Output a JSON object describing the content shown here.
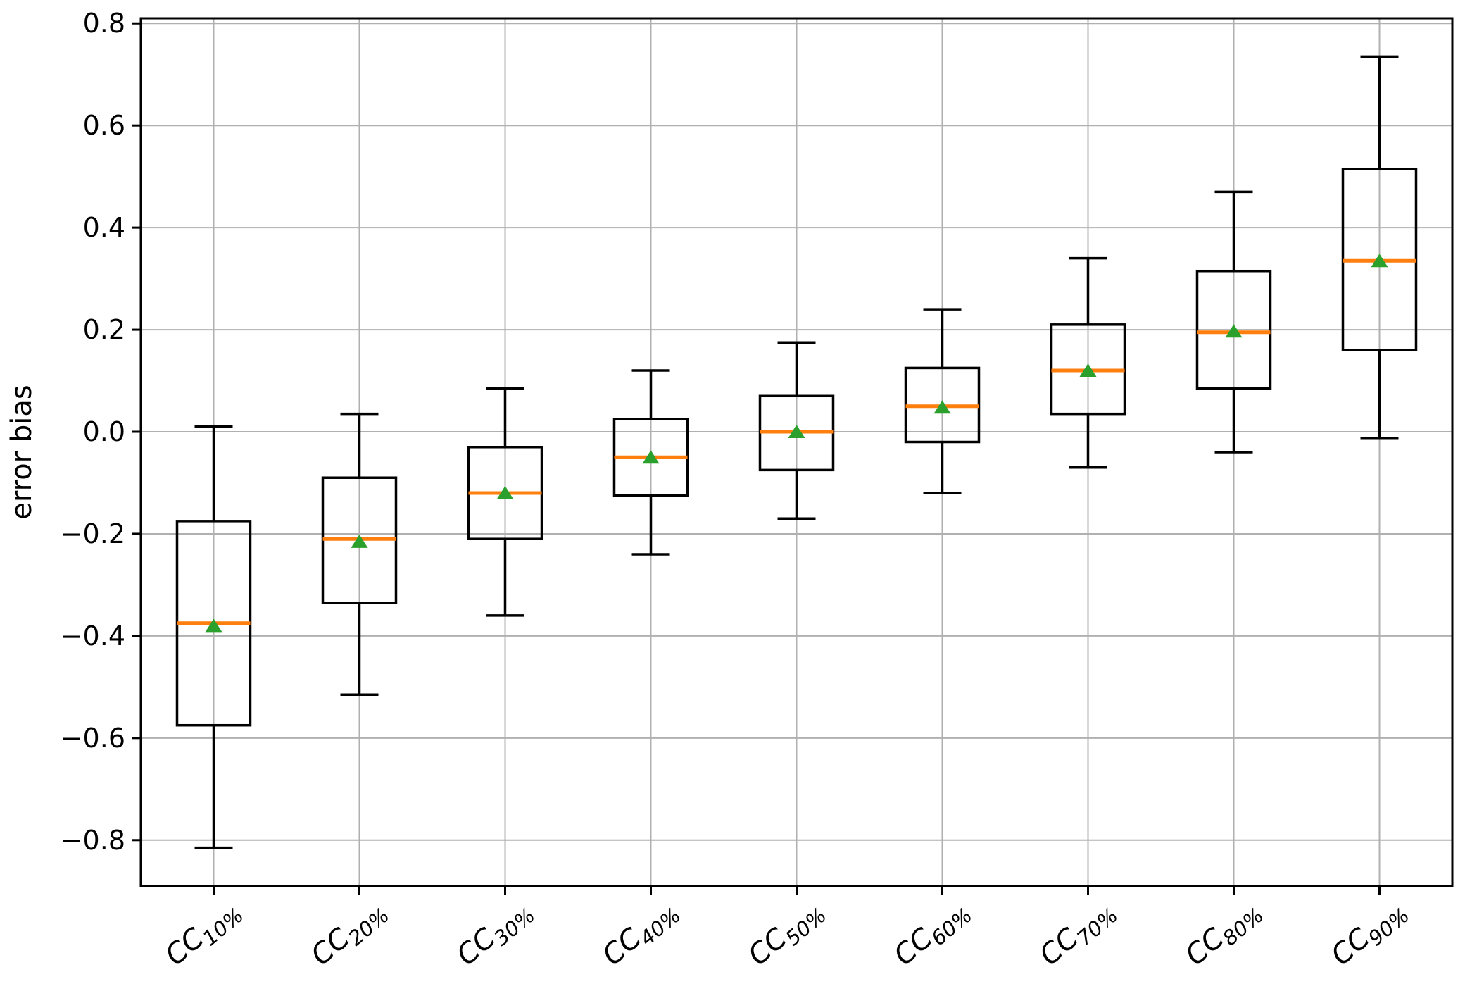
{
  "figure": {
    "background": "#ffffff"
  },
  "chart_data": {
    "type": "boxplot",
    "title": "",
    "xlabel": "",
    "ylabel": "error bias",
    "grid": true,
    "legend_position": "none",
    "ylim": [
      -0.89,
      0.81
    ],
    "y_ticks": [
      -0.8,
      -0.6,
      -0.4,
      -0.2,
      0.0,
      0.2,
      0.4,
      0.6,
      0.8
    ],
    "y_tick_labels": [
      "−0.8",
      "−0.6",
      "−0.4",
      "−0.2",
      "0.0",
      "0.2",
      "0.4",
      "0.6",
      "0.8"
    ],
    "categories": [
      {
        "prefix": "CC",
        "subscript": "10%"
      },
      {
        "prefix": "CC",
        "subscript": "20%"
      },
      {
        "prefix": "CC",
        "subscript": "30%"
      },
      {
        "prefix": "CC",
        "subscript": "40%"
      },
      {
        "prefix": "CC",
        "subscript": "50%"
      },
      {
        "prefix": "CC",
        "subscript": "60%"
      },
      {
        "prefix": "CC",
        "subscript": "70%"
      },
      {
        "prefix": "CC",
        "subscript": "80%"
      },
      {
        "prefix": "CC",
        "subscript": "90%"
      }
    ],
    "boxes": [
      {
        "category": "CC 10%",
        "whisker_low": -0.815,
        "q1": -0.575,
        "median": -0.375,
        "mean": -0.38,
        "q3": -0.175,
        "whisker_high": 0.01
      },
      {
        "category": "CC 20%",
        "whisker_low": -0.515,
        "q1": -0.335,
        "median": -0.21,
        "mean": -0.215,
        "q3": -0.09,
        "whisker_high": 0.035
      },
      {
        "category": "CC 30%",
        "whisker_low": -0.36,
        "q1": -0.21,
        "median": -0.12,
        "mean": -0.12,
        "q3": -0.03,
        "whisker_high": 0.085
      },
      {
        "category": "CC 40%",
        "whisker_low": -0.24,
        "q1": -0.125,
        "median": -0.05,
        "mean": -0.05,
        "q3": 0.025,
        "whisker_high": 0.12
      },
      {
        "category": "CC 50%",
        "whisker_low": -0.17,
        "q1": -0.075,
        "median": 0.0,
        "mean": 0.0,
        "q3": 0.07,
        "whisker_high": 0.175
      },
      {
        "category": "CC 60%",
        "whisker_low": -0.12,
        "q1": -0.02,
        "median": 0.05,
        "mean": 0.048,
        "q3": 0.125,
        "whisker_high": 0.24
      },
      {
        "category": "CC 70%",
        "whisker_low": -0.07,
        "q1": 0.035,
        "median": 0.12,
        "mean": 0.12,
        "q3": 0.21,
        "whisker_high": 0.34
      },
      {
        "category": "CC 80%",
        "whisker_low": -0.04,
        "q1": 0.085,
        "median": 0.195,
        "mean": 0.197,
        "q3": 0.315,
        "whisker_high": 0.47
      },
      {
        "category": "CC 90%",
        "whisker_low": -0.012,
        "q1": 0.16,
        "median": 0.335,
        "mean": 0.335,
        "q3": 0.515,
        "whisker_high": 0.735
      }
    ],
    "styles": {
      "median_color": "#ff7f0e",
      "mean_marker_color": "#2ca02c",
      "mean_marker": "triangle_up",
      "box_color": "#000000",
      "grid_color": "#b0b0b0",
      "spine_color": "#000000"
    }
  }
}
